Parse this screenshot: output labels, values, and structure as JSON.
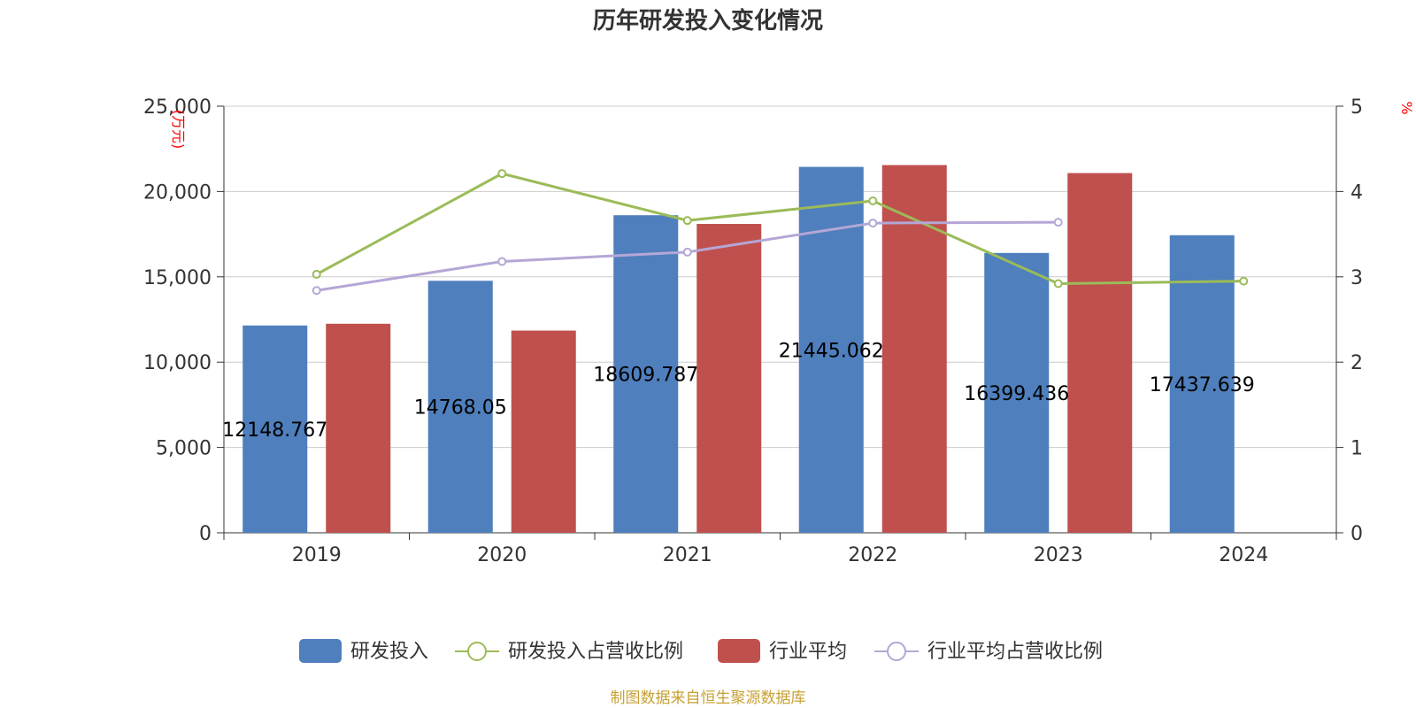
{
  "chart_data": {
    "type": "bar",
    "title": "历年研发投入变化情况",
    "categories": [
      "2019",
      "2020",
      "2021",
      "2022",
      "2023",
      "2024"
    ],
    "left_axis": {
      "unit": "(万元)",
      "ticks": [
        "0",
        "5,000",
        "10,000",
        "15,000",
        "20,000",
        "25,000"
      ],
      "range": [
        0,
        25000
      ]
    },
    "right_axis": {
      "unit": "%",
      "ticks": [
        "0",
        "1",
        "2",
        "3",
        "4",
        "5"
      ],
      "range": [
        0,
        5
      ]
    },
    "bar_series": [
      {
        "name": "研发投入",
        "color": "#4f7fbd",
        "values": [
          12148.767,
          14768.05,
          18609.787,
          21445.062,
          16399.436,
          17437.639
        ],
        "labels": [
          "12148.767",
          "14768.05",
          "18609.787",
          "21445.062",
          "16399.436",
          "17437.639"
        ]
      },
      {
        "name": "行业平均",
        "color": "#c0504d",
        "values": [
          12250,
          11850,
          18100,
          21550,
          21080,
          null
        ]
      }
    ],
    "line_series": [
      {
        "name": "研发投入占营收比例",
        "color": "#9bbb59",
        "values": [
          3.03,
          4.21,
          3.66,
          3.89,
          2.92,
          2.95
        ]
      },
      {
        "name": "行业平均占营收比例",
        "color": "#b4a7d6",
        "values": [
          2.84,
          3.18,
          3.29,
          3.63,
          3.64,
          null
        ]
      }
    ],
    "legend": [
      "研发投入",
      "研发投入占营收比例",
      "行业平均",
      "行业平均占营收比例"
    ],
    "legend_position": "bottom"
  },
  "footer": {
    "source": "制图数据来自恒生聚源数据库",
    "color": "#c8a032"
  },
  "style": {
    "grid_color": "#cccccc",
    "axis_color": "#333333",
    "unit_color": "#ff0000"
  }
}
